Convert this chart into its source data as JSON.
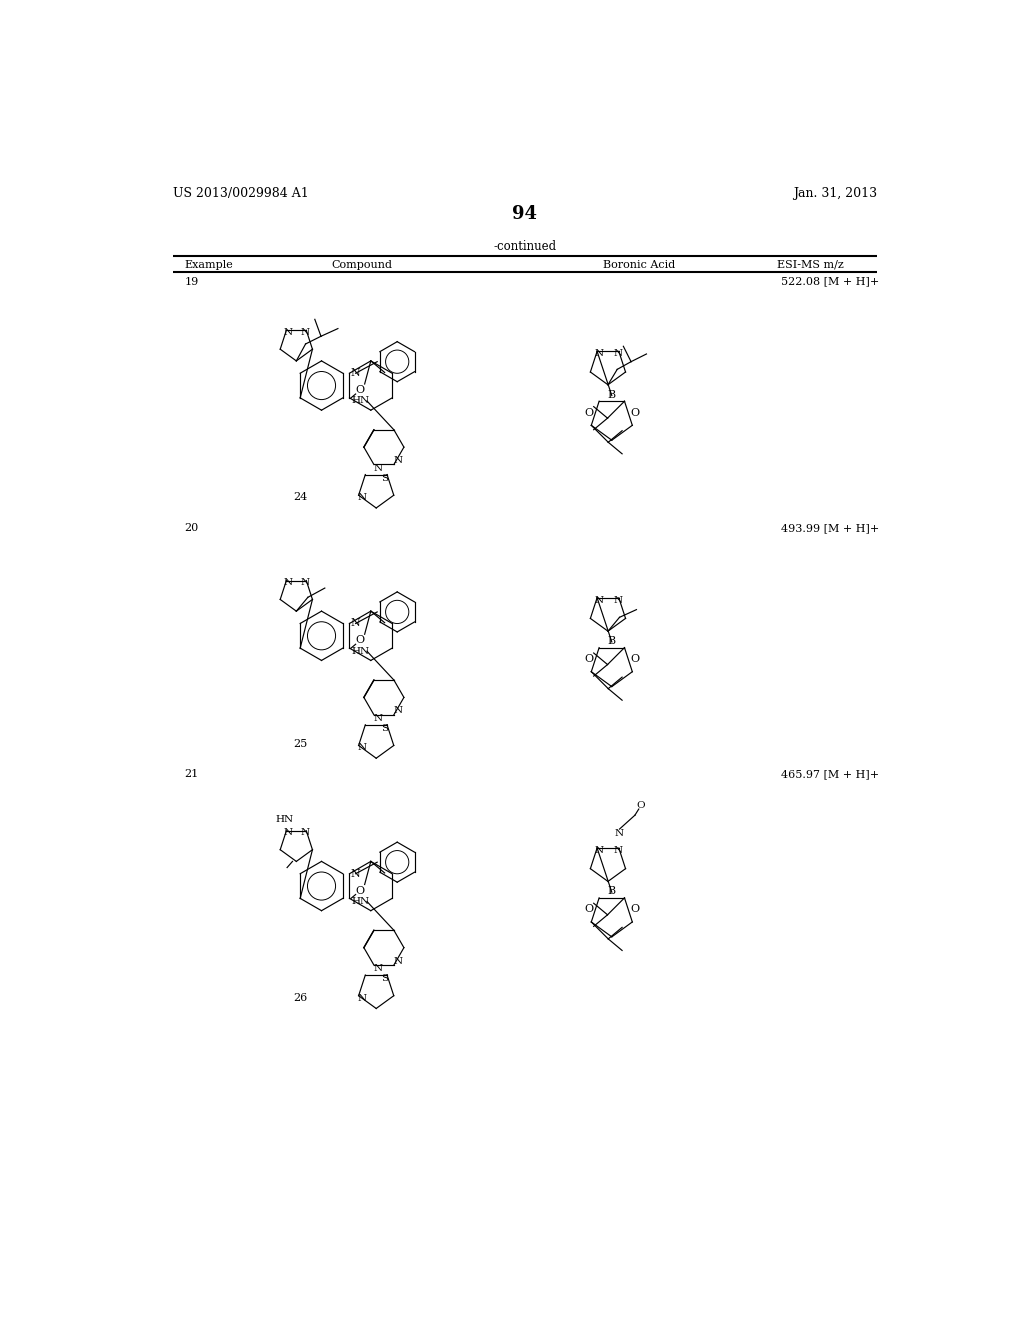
{
  "patent_number": "US 2013/0029984 A1",
  "date": "Jan. 31, 2013",
  "page_number": "94",
  "continued_label": "-continued",
  "col_headers": [
    "Example",
    "Compound",
    "Boronic Acid",
    "ESI-MS m/z"
  ],
  "rows": [
    {
      "example": "19",
      "compound_num": "24",
      "esi_ms": "522.08 [M + H]+"
    },
    {
      "example": "20",
      "compound_num": "25",
      "esi_ms": "493.99 [M + H]+"
    },
    {
      "example": "21",
      "compound_num": "26",
      "esi_ms": "465.97 [M + H]+"
    }
  ],
  "bg_color": "#ffffff"
}
